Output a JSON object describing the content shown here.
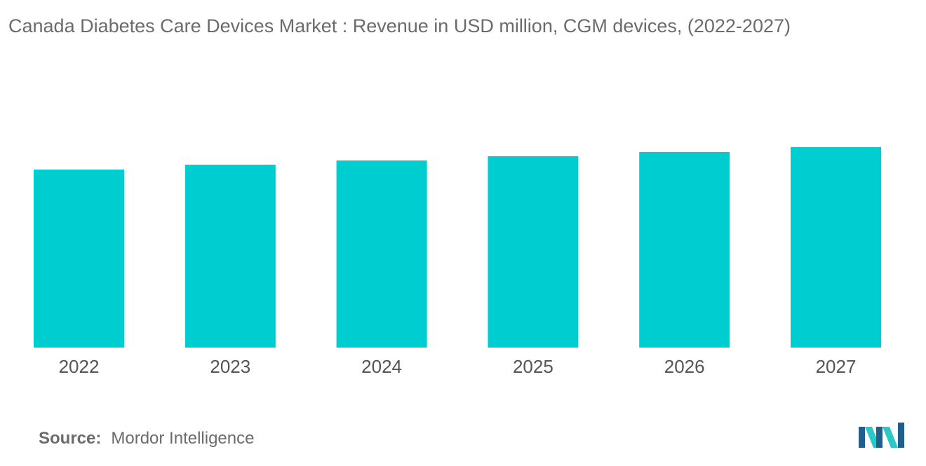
{
  "colors": {
    "bar": "#00cdd0",
    "logo_dark": "#1f5f8f",
    "logo_light": "#2cc7c9"
  },
  "chart_data": {
    "type": "bar",
    "title": "Canada Diabetes Care Devices Market : Revenue in USD million, CGM devices, (2022-2027)",
    "categories": [
      "2022",
      "2023",
      "2024",
      "2025",
      "2026",
      "2027"
    ],
    "values": [
      254,
      261,
      267,
      273,
      279,
      286
    ],
    "xlabel": "",
    "ylabel": "",
    "ylim": [
      0,
      300
    ],
    "grid": false,
    "legend": "none"
  },
  "source": {
    "label": "Source:",
    "text": "Mordor Intelligence"
  },
  "logo": {
    "icon": "mordor-intelligence-logo-icon"
  }
}
